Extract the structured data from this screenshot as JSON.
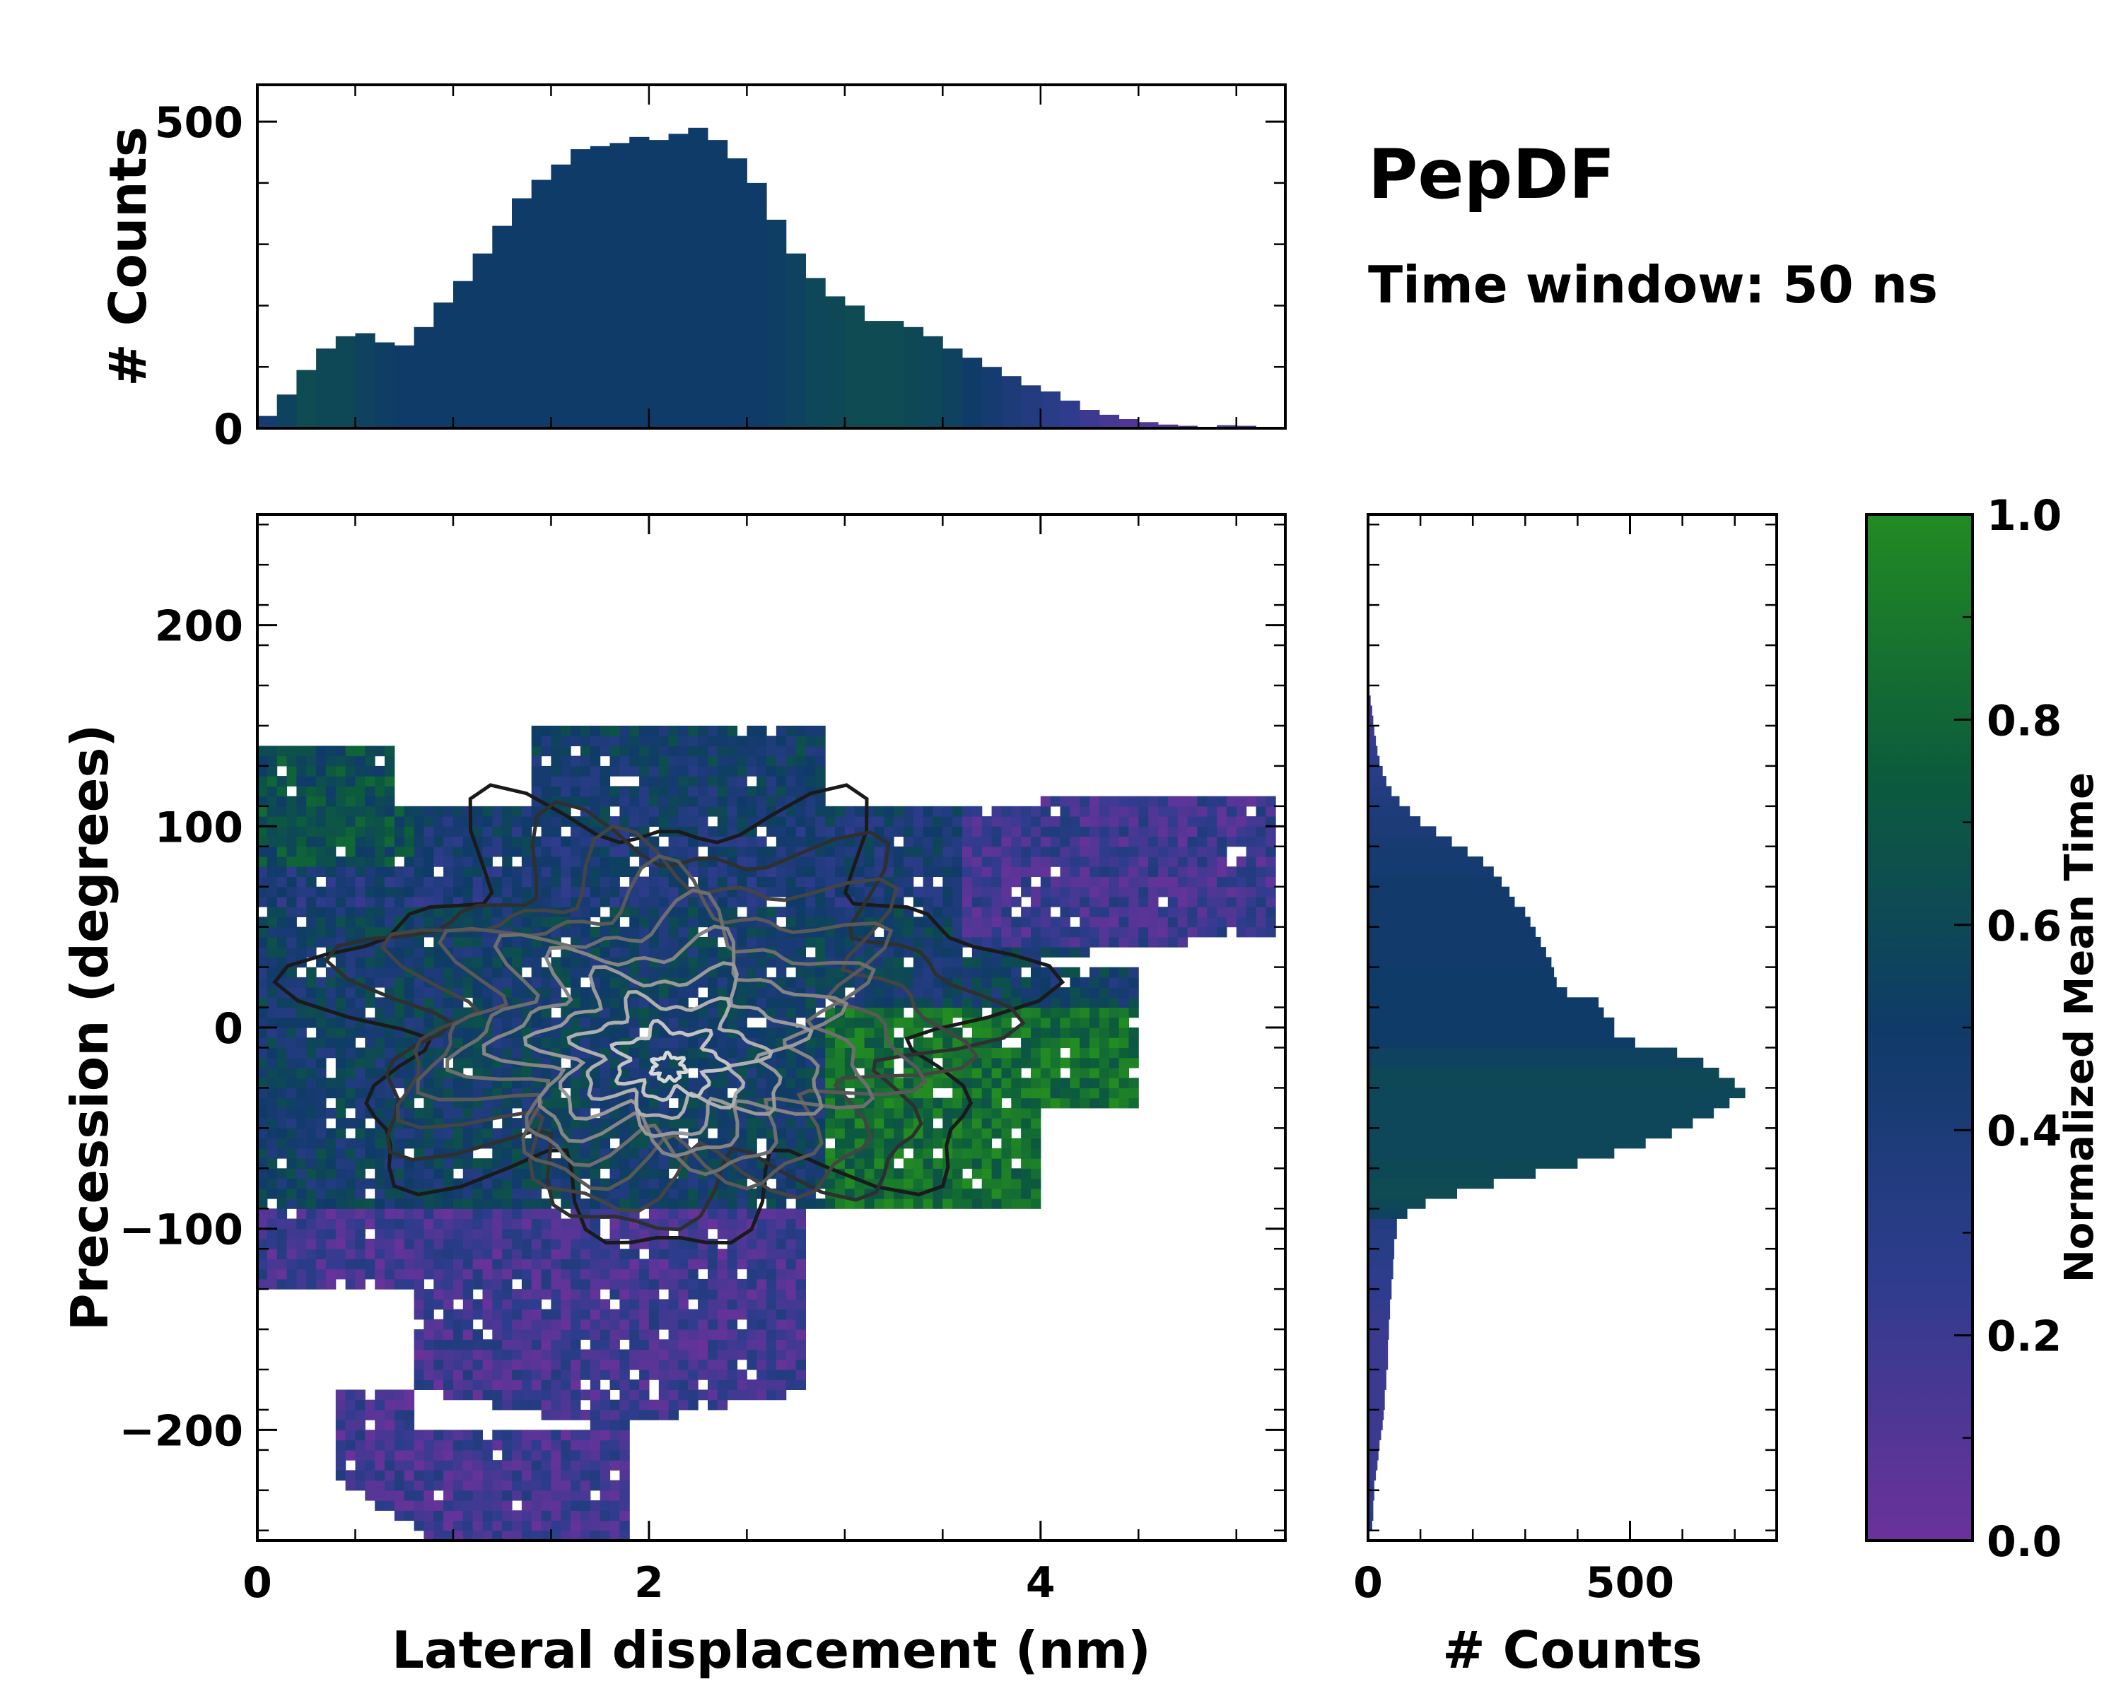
{
  "figure": {
    "title": "PepDF",
    "subtitle": "Time window: 50 ns"
  },
  "colors": {
    "cmap": [
      "#6a329a",
      "#2f3c8e",
      "#0f3b68",
      "#0c5c3c",
      "#228b22"
    ],
    "contour_dark": "#1a1a1a",
    "contour_light": "#d8d8d8",
    "frame": "#000000"
  },
  "chart_data": [
    {
      "id": "joint",
      "type": "heatmap",
      "xlabel": "Lateral displacement (nm)",
      "ylabel": "Precession (degrees)",
      "xlim": [
        0,
        5.25
      ],
      "ylim": [
        -255,
        255
      ],
      "xticks": [
        0,
        2,
        4
      ],
      "xtick_labels": [
        "0",
        "2",
        "4"
      ],
      "yticks": [
        -200,
        -100,
        0,
        100,
        200
      ],
      "ytick_labels": [
        "−200",
        "−100",
        "0",
        "100",
        "200"
      ],
      "color_value": "Normalized Mean Time",
      "density_peak": {
        "x": 1.95,
        "y": -20
      },
      "contour_levels": 10,
      "overlay": "density contours"
    },
    {
      "id": "x_marginal",
      "type": "bar",
      "orientation": "vertical",
      "ylabel": "# Counts",
      "xlim": [
        0,
        5.25
      ],
      "ylim": [
        0,
        560
      ],
      "yticks": [
        0,
        500
      ],
      "ytick_labels": [
        "0",
        "500"
      ],
      "x": [
        0.05,
        0.15,
        0.25,
        0.35,
        0.45,
        0.55,
        0.65,
        0.75,
        0.85,
        0.95,
        1.05,
        1.15,
        1.25,
        1.35,
        1.45,
        1.55,
        1.65,
        1.75,
        1.85,
        1.95,
        2.05,
        2.15,
        2.25,
        2.35,
        2.45,
        2.55,
        2.65,
        2.75,
        2.85,
        2.95,
        3.05,
        3.15,
        3.25,
        3.35,
        3.45,
        3.55,
        3.65,
        3.75,
        3.85,
        3.95,
        4.05,
        4.15,
        4.25,
        4.35,
        4.45,
        4.55,
        4.65,
        4.75,
        4.85,
        4.95,
        5.05,
        5.15
      ],
      "values": [
        20,
        55,
        95,
        130,
        150,
        155,
        140,
        135,
        165,
        205,
        240,
        285,
        330,
        375,
        405,
        430,
        455,
        460,
        465,
        475,
        470,
        480,
        490,
        470,
        440,
        400,
        340,
        285,
        245,
        215,
        200,
        175,
        175,
        165,
        150,
        130,
        115,
        100,
        85,
        70,
        60,
        45,
        30,
        22,
        15,
        10,
        6,
        4,
        2,
        5,
        4,
        2
      ],
      "mean_time": [
        0.45,
        0.55,
        0.62,
        0.6,
        0.6,
        0.55,
        0.52,
        0.5,
        0.5,
        0.5,
        0.5,
        0.5,
        0.5,
        0.5,
        0.5,
        0.5,
        0.5,
        0.5,
        0.5,
        0.5,
        0.5,
        0.5,
        0.5,
        0.5,
        0.5,
        0.5,
        0.52,
        0.55,
        0.58,
        0.6,
        0.62,
        0.62,
        0.62,
        0.6,
        0.58,
        0.55,
        0.5,
        0.45,
        0.4,
        0.35,
        0.3,
        0.25,
        0.2,
        0.15,
        0.1,
        0.1,
        0.1,
        0.1,
        0.1,
        0.1,
        0.1,
        0.1
      ]
    },
    {
      "id": "y_marginal",
      "type": "bar",
      "orientation": "horizontal",
      "xlabel": "# Counts",
      "xlim": [
        0,
        780
      ],
      "ylim": [
        -255,
        255
      ],
      "xticks": [
        0,
        500
      ],
      "xtick_labels": [
        "0",
        "500"
      ],
      "y": [
        -247.5,
        -242.5,
        -237.5,
        -232.5,
        -227.5,
        -222.5,
        -217.5,
        -212.5,
        -207.5,
        -202.5,
        -197.5,
        -192.5,
        -187.5,
        -182.5,
        -177.5,
        -172.5,
        -167.5,
        -162.5,
        -157.5,
        -152.5,
        -147.5,
        -142.5,
        -137.5,
        -132.5,
        -127.5,
        -122.5,
        -117.5,
        -112.5,
        -107.5,
        -102.5,
        -97.5,
        -92.5,
        -87.5,
        -82.5,
        -77.5,
        -72.5,
        -67.5,
        -62.5,
        -57.5,
        -52.5,
        -47.5,
        -42.5,
        -37.5,
        -32.5,
        -27.5,
        -22.5,
        -17.5,
        -12.5,
        -7.5,
        -2.5,
        2.5,
        7.5,
        12.5,
        17.5,
        22.5,
        27.5,
        32.5,
        37.5,
        42.5,
        47.5,
        52.5,
        57.5,
        62.5,
        67.5,
        72.5,
        77.5,
        82.5,
        87.5,
        92.5,
        97.5,
        102.5,
        107.5,
        112.5,
        117.5,
        122.5,
        127.5,
        132.5,
        137.5,
        142.5,
        147.5,
        152.5,
        157.5,
        162.5
      ],
      "values": [
        8,
        10,
        10,
        12,
        12,
        15,
        18,
        20,
        22,
        25,
        28,
        30,
        32,
        32,
        35,
        35,
        38,
        38,
        38,
        40,
        40,
        42,
        42,
        45,
        45,
        48,
        48,
        50,
        50,
        55,
        55,
        75,
        110,
        170,
        240,
        320,
        400,
        470,
        530,
        580,
        620,
        660,
        690,
        720,
        700,
        670,
        640,
        590,
        510,
        470,
        470,
        450,
        440,
        380,
        360,
        355,
        350,
        340,
        330,
        320,
        310,
        300,
        280,
        270,
        255,
        240,
        220,
        190,
        160,
        130,
        100,
        80,
        60,
        45,
        35,
        28,
        22,
        18,
        15,
        12,
        10,
        8,
        5
      ],
      "mean_time": [
        0.3,
        0.3,
        0.25,
        0.25,
        0.25,
        0.22,
        0.22,
        0.2,
        0.2,
        0.2,
        0.2,
        0.2,
        0.2,
        0.2,
        0.2,
        0.2,
        0.2,
        0.2,
        0.2,
        0.2,
        0.22,
        0.22,
        0.24,
        0.25,
        0.25,
        0.26,
        0.28,
        0.3,
        0.3,
        0.32,
        0.35,
        0.55,
        0.6,
        0.62,
        0.62,
        0.6,
        0.6,
        0.58,
        0.58,
        0.58,
        0.58,
        0.58,
        0.58,
        0.58,
        0.6,
        0.6,
        0.55,
        0.55,
        0.5,
        0.5,
        0.5,
        0.5,
        0.5,
        0.5,
        0.5,
        0.5,
        0.48,
        0.48,
        0.48,
        0.48,
        0.48,
        0.48,
        0.48,
        0.48,
        0.48,
        0.45,
        0.45,
        0.45,
        0.42,
        0.4,
        0.4,
        0.38,
        0.36,
        0.34,
        0.32,
        0.3,
        0.28,
        0.25,
        0.22,
        0.2,
        0.18,
        0.15,
        0.12
      ]
    },
    {
      "id": "colorbar",
      "type": "colorbar",
      "label": "Normalized Mean Time",
      "lim": [
        0,
        1
      ],
      "ticks": [
        0,
        0.2,
        0.4,
        0.6,
        0.8,
        1
      ],
      "tick_labels": [
        "0.0",
        "0.2",
        "0.4",
        "0.6",
        "0.8",
        "1.0"
      ]
    }
  ]
}
